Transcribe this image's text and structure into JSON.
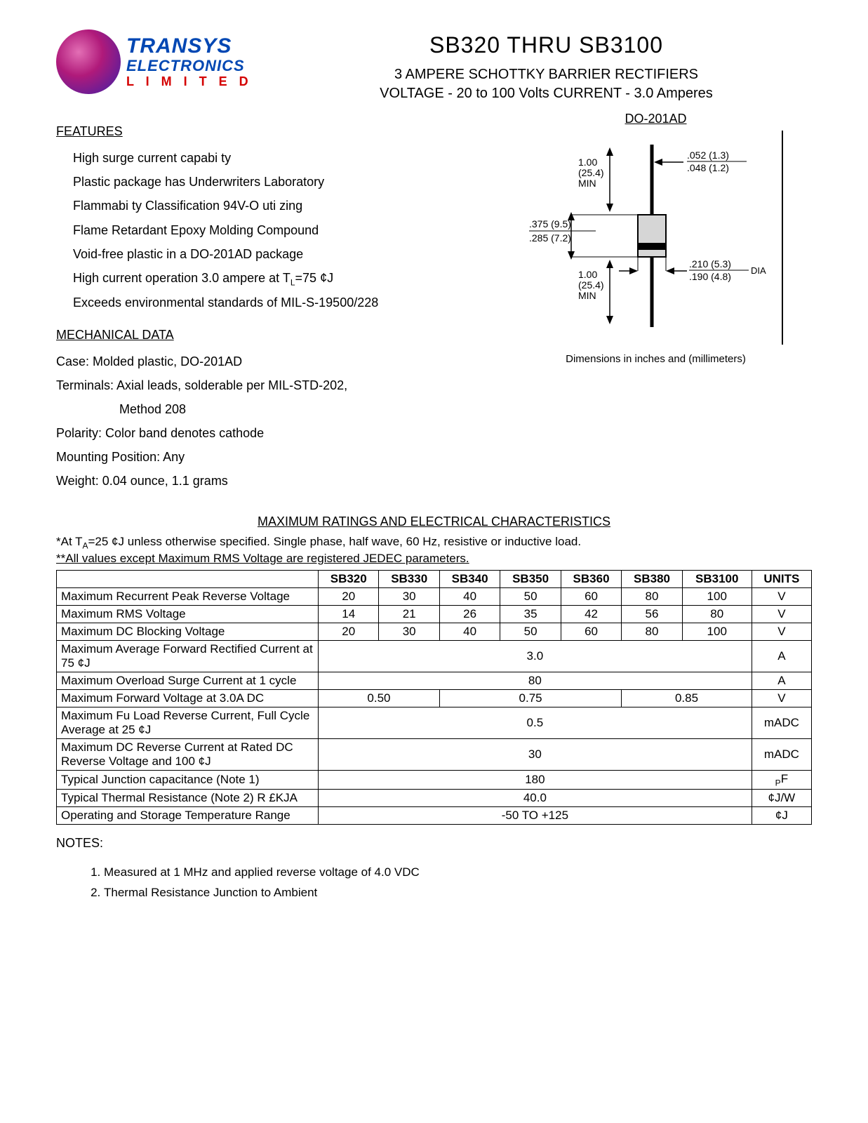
{
  "logo": {
    "line1": "TRANSYS",
    "line2": "ELECTRONICS",
    "line3": "L I M I T E D"
  },
  "title": {
    "main": "SB320 THRU SB3100",
    "sub": "3 AMPERE SCHOTTKY BARRIER RECTIFIERS",
    "voltage": "VOLTAGE - 20 to 100 Volts    CURRENT - 3.0 Amperes"
  },
  "package": {
    "name": "DO-201AD",
    "dim_note": "Dimensions in inches and (millimeters)",
    "lead_len_in": "1.00",
    "lead_len_mm": "(25.4)",
    "lead_len_suffix": "MIN",
    "body_len_max_in": ".375",
    "body_len_max_mm": "(9.5)",
    "body_len_min_in": ".285",
    "body_len_min_mm": "(7.2)",
    "lead_dia_max_in": ".052",
    "lead_dia_max_mm": "(1.3)",
    "lead_dia_min_in": ".048",
    "lead_dia_min_mm": "(1.2)",
    "body_dia_max_in": ".210",
    "body_dia_max_mm": "(5.3)",
    "body_dia_min_in": ".190",
    "body_dia_min_mm": "(4.8)",
    "dia_label": "DIA"
  },
  "features": {
    "heading": "FEATURES",
    "items": [
      "High surge current capabi ty",
      "Plastic package has Underwriters Laboratory",
      " Flammabi ty Classification 94V-O uti  zing",
      " Flame Retardant Epoxy Molding Compound",
      "Void-free plastic in a DO-201AD package",
      "High current operation 3.0 ampere at T",
      "Exceeds environmental standards of MIL-S-19500/228"
    ],
    "tl_sub": "L",
    "tl_suffix": "=75 ¢J"
  },
  "mechanical": {
    "heading": "MECHANICAL DATA",
    "case": "Case: Molded plastic, DO-201AD",
    "terminals1": "Terminals: Axial leads, solderable per MIL-STD-202,",
    "terminals2": "Method 208",
    "polarity": "Polarity: Color band denotes cathode",
    "mounting": "Mounting Position: Any",
    "weight": "Weight: 0.04 ounce, 1.1 grams"
  },
  "ratings": {
    "heading": "MAXIMUM RATINGS AND ELECTRICAL CHARACTERISTICS",
    "note1": "*At T",
    "note1_sub": "A",
    "note1_tail": "=25 ¢J unless otherwise specified. Single phase, half wave, 60 Hz, resistive or inductive load.",
    "note2": "**All values except Maximum RMS Voltage are registered JEDEC parameters.",
    "columns": [
      "",
      "SB320",
      "SB330",
      "SB340",
      "SB350",
      "SB360",
      "SB380",
      "SB3100",
      "UNITS"
    ],
    "rows": [
      {
        "param": "Maximum Recurrent Peak Reverse Voltage",
        "cells": [
          "20",
          "30",
          "40",
          "50",
          "60",
          "80",
          "100"
        ],
        "unit": "V"
      },
      {
        "param": "Maximum RMS Voltage",
        "cells": [
          "14",
          "21",
          "26",
          "35",
          "42",
          "56",
          "80"
        ],
        "unit": "V"
      },
      {
        "param": "Maximum DC Blocking Voltage",
        "cells": [
          "20",
          "30",
          "40",
          "50",
          "60",
          "80",
          "100"
        ],
        "unit": "V"
      },
      {
        "param": "Maximum Average Forward Rectified Current at 75 ¢J",
        "span": "3.0",
        "unit": "A"
      },
      {
        "param": "Maximum Overload Surge Current at 1 cycle",
        "span": "80",
        "unit": "A"
      },
      {
        "param": "Maximum Forward Voltage at 3.0A DC",
        "groups": [
          [
            "0.50",
            2
          ],
          [
            "0.75",
            3
          ],
          [
            "0.85",
            2
          ]
        ],
        "unit": "V"
      },
      {
        "param": "Maximum Fu   Load Reverse Current, Full Cycle Average at 25 ¢J",
        "span": "0.5",
        "unit": "mADC"
      },
      {
        "param": "Maximum DC Reverse Current at Rated DC Reverse Voltage and 100 ¢J",
        "span": "30",
        "unit": "mADC"
      },
      {
        "param": "Typical Junction capacitance (Note 1)",
        "span": "180",
        "unit_html": "<sub>P</sub>F"
      },
      {
        "param": "Typical Thermal Resistance (Note 2) R £KJA",
        "span": "40.0",
        "unit": "¢J/W"
      },
      {
        "param": "Operating and Storage Temperature Range",
        "span": "-50 TO +125",
        "unit": "¢J"
      }
    ]
  },
  "notes": {
    "heading": "NOTES:",
    "items": [
      "Measured at 1 MHz and applied reverse voltage of 4.0 VDC",
      "Thermal Resistance Junction to Ambient"
    ]
  }
}
